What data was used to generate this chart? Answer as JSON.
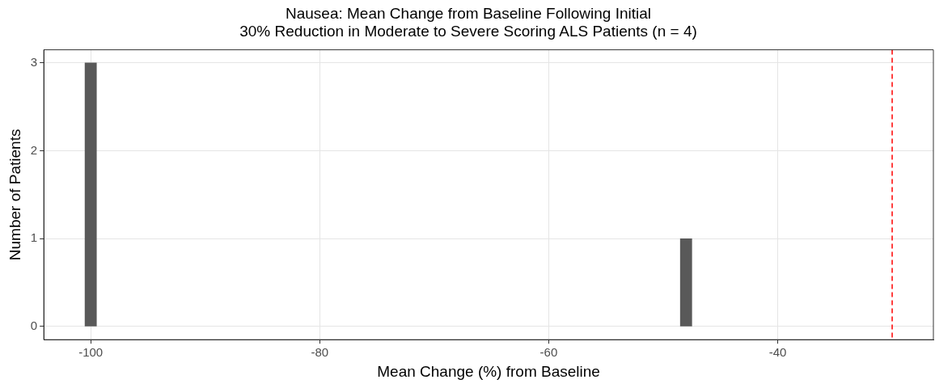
{
  "chart_data": {
    "type": "histogram",
    "title": "Nausea: Mean Change from Baseline Following Initial\n30% Reduction in Moderate to Severe Scoring ALS Patients (n = 4)",
    "xlabel": "Mean Change (%) from Baseline",
    "ylabel": "Number of Patients",
    "bins": [
      -100.5,
      -99.5,
      -98.5,
      -97.5,
      -96.5,
      -95.5,
      -94.5,
      -93.5,
      -92.5,
      -91.5,
      -90.5,
      -89.5,
      -88.5,
      -87.5,
      -86.5,
      -85.5,
      -84.5,
      -83.5,
      -82.5,
      -81.5,
      -80.5,
      -79.5,
      -78.5,
      -77.5,
      -76.5,
      -75.5,
      -74.5,
      -73.5,
      -72.5,
      -71.5,
      -70.5,
      -69.5,
      -68.5,
      -67.5,
      -66.5,
      -65.5,
      -64.5,
      -63.5,
      -62.5,
      -61.5,
      -60.5,
      -59.5,
      -58.5,
      -57.5,
      -56.5,
      -55.5,
      -54.5,
      -53.5,
      -52.5,
      -51.5,
      -50.5,
      -49.5,
      -48.5,
      -47.5
    ],
    "values": [
      3,
      0,
      0,
      0,
      0,
      0,
      0,
      0,
      0,
      0,
      0,
      0,
      0,
      0,
      0,
      0,
      0,
      0,
      0,
      0,
      0,
      0,
      0,
      0,
      0,
      0,
      0,
      0,
      0,
      0,
      0,
      0,
      0,
      0,
      0,
      0,
      0,
      0,
      0,
      0,
      0,
      0,
      0,
      0,
      0,
      0,
      0,
      0,
      0,
      0,
      0,
      0,
      1
    ],
    "color": "#595959",
    "xlim": [
      -104.1,
      -26.4
    ],
    "xticks": [
      -100,
      -80,
      -60,
      -40
    ],
    "ylim": [
      -0.15,
      3.15
    ],
    "yticks": [
      0,
      1,
      2,
      3
    ],
    "grid": true,
    "legend": false,
    "ref_lines": [
      {
        "axis": "x",
        "value": -30,
        "color": "#ff0000",
        "line_style": "dashed"
      }
    ]
  }
}
